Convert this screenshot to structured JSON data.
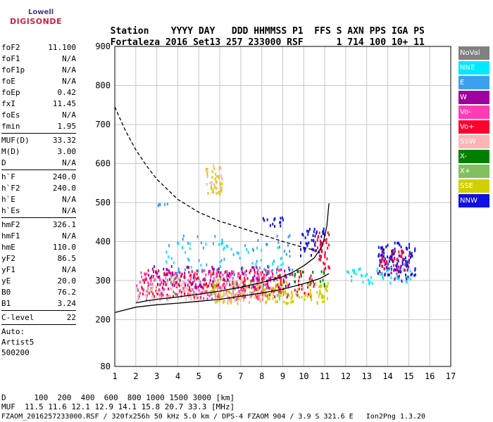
{
  "logo": {
    "top": "Lowell",
    "bottom": "DIGISONDE"
  },
  "header": {
    "labels": [
      "Station",
      "YYYY",
      "DAY",
      "DDD",
      "HHMMSS",
      "P1",
      "FFS",
      "S",
      "AXN",
      "PPS",
      "IGA",
      "PS"
    ],
    "values": [
      "Fortaleza",
      "2016",
      "Set13",
      "257",
      "233000",
      "RSF",
      "",
      "1",
      "714",
      "100",
      "10+",
      "11"
    ]
  },
  "params": {
    "group1": [
      {
        "name": "foF2",
        "value": "11.100"
      },
      {
        "name": "foF1",
        "value": "N/A"
      },
      {
        "name": "foF1p",
        "value": "N/A"
      },
      {
        "name": "foE",
        "value": "N/A"
      },
      {
        "name": "foEp",
        "value": "0.42"
      },
      {
        "name": "fxI",
        "value": "11.45"
      },
      {
        "name": "foEs",
        "value": "N/A"
      },
      {
        "name": "fmin",
        "value": "1.95"
      }
    ],
    "group2": [
      {
        "name": "MUF(D)",
        "value": "33.32"
      },
      {
        "name": "M(D)",
        "value": "3.00"
      },
      {
        "name": "D",
        "value": "N/A"
      }
    ],
    "group3": [
      {
        "name": "h`F",
        "value": "240.0"
      },
      {
        "name": "h`F2",
        "value": "240.0"
      },
      {
        "name": "h`E",
        "value": "N/A"
      },
      {
        "name": "h`Es",
        "value": "N/A"
      }
    ],
    "group4": [
      {
        "name": "hmF2",
        "value": "326.1"
      },
      {
        "name": "hmF1",
        "value": "N/A"
      },
      {
        "name": "hmE",
        "value": "110.0"
      },
      {
        "name": "yF2",
        "value": "86.5"
      },
      {
        "name": "yF1",
        "value": "N/A"
      },
      {
        "name": "yE",
        "value": "20.0"
      },
      {
        "name": "B0",
        "value": "76.2"
      },
      {
        "name": "B1",
        "value": "3.24"
      }
    ],
    "group5": [
      {
        "name": "C-level",
        "value": "22"
      }
    ]
  },
  "auto": {
    "line1": "Auto:",
    "line2": "Artist5",
    "line3": "500200"
  },
  "legend": [
    {
      "label": "NoVal",
      "color": "#808080"
    },
    {
      "label": "NNE",
      "color": "#00e8ff"
    },
    {
      "label": "E",
      "color": "#3aa0f0"
    },
    {
      "label": "W",
      "color": "#a000a0"
    },
    {
      "label": "Vo-",
      "color": "#ff3cb4"
    },
    {
      "label": "Vo+",
      "color": "#ff0030"
    },
    {
      "label": "SSW",
      "color": "#ffb4b4"
    },
    {
      "label": "X-",
      "color": "#008000"
    },
    {
      "label": "X+",
      "color": "#80c060"
    },
    {
      "label": "SSE",
      "color": "#d0d000"
    },
    {
      "label": "NNW",
      "color": "#1010e0"
    }
  ],
  "chart_data": {
    "type": "scatter",
    "xlabel": "",
    "ylabel": "",
    "xlim": [
      1,
      17
    ],
    "ylim": [
      80,
      900
    ],
    "x_ticks": [
      1,
      2,
      3,
      4,
      5,
      6,
      7,
      8,
      9,
      10,
      11,
      12,
      13,
      14,
      15,
      16,
      17
    ],
    "y_ticks": [
      80,
      200,
      300,
      400,
      500,
      600,
      700,
      800,
      900
    ],
    "grid": true,
    "curves": [
      {
        "name": "profile_lower",
        "style": "solid",
        "points": [
          [
            1,
            218
          ],
          [
            2,
            232
          ],
          [
            3,
            238
          ],
          [
            4,
            242
          ],
          [
            5,
            247
          ],
          [
            6,
            252
          ],
          [
            7,
            260
          ],
          [
            8,
            268
          ],
          [
            9,
            278
          ],
          [
            10,
            292
          ],
          [
            10.8,
            306
          ],
          [
            11.2,
            318
          ]
        ]
      },
      {
        "name": "profile_upper",
        "style": "solid",
        "points": [
          [
            2,
            243
          ],
          [
            2.5,
            248
          ],
          [
            3,
            252
          ],
          [
            4,
            258
          ],
          [
            5,
            265
          ],
          [
            6,
            273
          ],
          [
            7,
            283
          ],
          [
            8,
            295
          ],
          [
            9,
            310
          ],
          [
            9.5,
            322
          ],
          [
            10,
            338
          ],
          [
            10.5,
            358
          ],
          [
            10.9,
            390
          ],
          [
            11.1,
            440
          ],
          [
            11.2,
            498
          ]
        ]
      },
      {
        "name": "muf_dashed",
        "style": "dashed",
        "points": [
          [
            1,
            745
          ],
          [
            1.5,
            685
          ],
          [
            2,
            635
          ],
          [
            2.5,
            595
          ],
          [
            3,
            560
          ],
          [
            4,
            508
          ],
          [
            5,
            475
          ],
          [
            6,
            452
          ],
          [
            7,
            435
          ],
          [
            8,
            418
          ],
          [
            9,
            400
          ],
          [
            10,
            385
          ],
          [
            10.5,
            378
          ]
        ]
      }
    ],
    "clusters": [
      {
        "color": "#ff0030",
        "x": [
          2.2,
          10.5
        ],
        "y": [
          260,
          330
        ],
        "n": 260
      },
      {
        "color": "#ff3cb4",
        "x": [
          2.0,
          8.5
        ],
        "y": [
          255,
          330
        ],
        "n": 200
      },
      {
        "color": "#d0d000",
        "x": [
          5.5,
          11.3
        ],
        "y": [
          245,
          300
        ],
        "n": 170
      },
      {
        "color": "#ffb4b4",
        "x": [
          2.0,
          8.0
        ],
        "y": [
          250,
          305
        ],
        "n": 140
      },
      {
        "color": "#a000a0",
        "x": [
          2.5,
          9.5
        ],
        "y": [
          285,
          340
        ],
        "n": 120
      },
      {
        "color": "#1010e0",
        "x": [
          9.8,
          11.0
        ],
        "y": [
          360,
          440
        ],
        "n": 45
      },
      {
        "color": "#1010e0",
        "x": [
          13.5,
          15.3
        ],
        "y": [
          310,
          400
        ],
        "n": 110
      },
      {
        "color": "#ff0030",
        "x": [
          13.6,
          15.0
        ],
        "y": [
          320,
          380
        ],
        "n": 35
      },
      {
        "color": "#00e8ff",
        "x": [
          12.0,
          15.2
        ],
        "y": [
          295,
          335
        ],
        "n": 45
      },
      {
        "color": "#3aa0f0",
        "x": [
          3.5,
          9.5
        ],
        "y": [
          320,
          420
        ],
        "n": 55
      },
      {
        "color": "#00e8ff",
        "x": [
          3.0,
          9.0
        ],
        "y": [
          320,
          400
        ],
        "n": 45
      },
      {
        "color": "#d0d000",
        "x": [
          5.3,
          6.1
        ],
        "y": [
          520,
          600
        ],
        "n": 35
      },
      {
        "color": "#ffb4b4",
        "x": [
          5.3,
          6.1
        ],
        "y": [
          520,
          600
        ],
        "n": 20
      },
      {
        "color": "#1010e0",
        "x": [
          8.0,
          9.0
        ],
        "y": [
          440,
          465
        ],
        "n": 14
      },
      {
        "color": "#3aa0f0",
        "x": [
          3.0,
          3.5
        ],
        "y": [
          495,
          500
        ],
        "n": 6
      },
      {
        "color": "#ff0030",
        "x": [
          10.5,
          11.2
        ],
        "y": [
          330,
          430
        ],
        "n": 40
      },
      {
        "color": "#008000",
        "x": [
          9.5,
          11.0
        ],
        "y": [
          290,
          330
        ],
        "n": 18
      },
      {
        "color": "#80c060",
        "x": [
          2.0,
          9.0
        ],
        "y": [
          260,
          310
        ],
        "n": 30
      },
      {
        "color": "#a000a0",
        "x": [
          13.6,
          15.2
        ],
        "y": [
          300,
          360
        ],
        "n": 20
      }
    ]
  },
  "footer": {
    "line1": "D      100  200  400  600  800 1000 1500 3000 [km]",
    "line2": "MUF  11.5 11.6 12.1 12.9 14.1 15.8 20.7 33.3 [MHz]",
    "line3": "FZAOM_2016257233000.RSF / 320fx256h 50 kHz 5.0 km / DPS-4 FZAOM 904 / 3.9 S 321.6 E   Ion2Png 1.3.20"
  }
}
